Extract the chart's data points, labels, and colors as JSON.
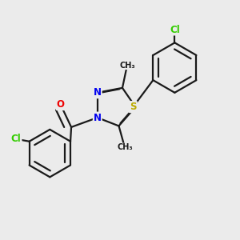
{
  "bg_color": "#ebebeb",
  "bond_color": "#1a1a1a",
  "bond_width": 1.6,
  "dbo": 0.09,
  "atom_colors": {
    "N": "#0000ee",
    "O": "#ee0000",
    "S": "#bbaa00",
    "Cl": "#33cc00",
    "C": "#1a1a1a"
  },
  "font_size": 8.5,
  "fig_size": [
    3.0,
    3.0
  ],
  "dpi": 100
}
